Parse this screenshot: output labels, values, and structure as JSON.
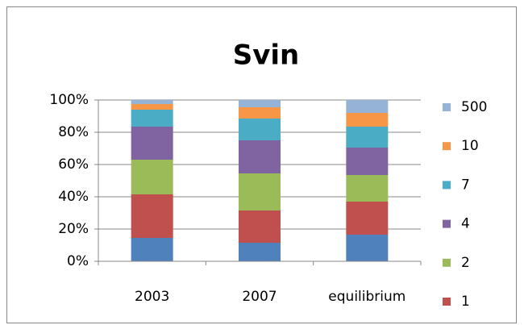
{
  "chart_data": {
    "type": "stacked_bar",
    "title": "Svin",
    "categories": [
      "2003",
      "2007",
      "equilibrium"
    ],
    "series": [
      {
        "name": null,
        "color": "#4f81bd",
        "values": [
          14.5,
          11.5,
          16.5
        ]
      },
      {
        "name": "1",
        "color": "#c0504d",
        "values": [
          27,
          20,
          20.5
        ]
      },
      {
        "name": "2",
        "color": "#9bbb59",
        "values": [
          21.5,
          23,
          16.5
        ]
      },
      {
        "name": "4",
        "color": "#8064a2",
        "values": [
          20.5,
          20.5,
          17
        ]
      },
      {
        "name": "7",
        "color": "#4bacc6",
        "values": [
          10.5,
          13.5,
          13
        ]
      },
      {
        "name": "10",
        "color": "#f79646",
        "values": [
          3.5,
          7,
          8.5
        ]
      },
      {
        "name": "500",
        "color": "#95b3d7",
        "values": [
          2.5,
          4.5,
          8
        ]
      }
    ],
    "ylim": [
      0,
      100
    ],
    "yticks": [
      {
        "value": 0,
        "label": "0%"
      },
      {
        "value": 20,
        "label": "20%"
      },
      {
        "value": 40,
        "label": "40%"
      },
      {
        "value": 60,
        "label": "60%"
      },
      {
        "value": 80,
        "label": "80%"
      },
      {
        "value": 100,
        "label": "100%"
      }
    ],
    "grid": true,
    "legend": "right"
  }
}
